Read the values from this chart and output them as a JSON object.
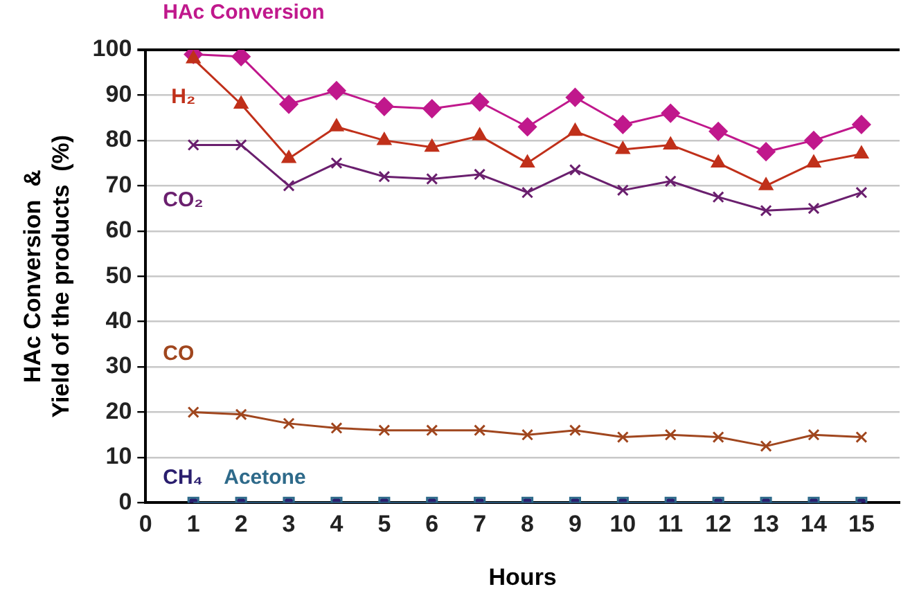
{
  "chart_data": {
    "type": "line",
    "xlabel": "Hours",
    "ylabel": "HAc Conversion  &\nYield of the products  (%)",
    "x": [
      1,
      2,
      3,
      4,
      5,
      6,
      7,
      8,
      9,
      10,
      11,
      12,
      13,
      14,
      15
    ],
    "xlim": [
      0,
      15.8
    ],
    "xticks": [
      0,
      1,
      2,
      3,
      4,
      5,
      6,
      7,
      8,
      9,
      10,
      11,
      12,
      13,
      14,
      15
    ],
    "ylim": [
      0,
      100
    ],
    "yticks": [
      0,
      10,
      20,
      30,
      40,
      50,
      60,
      70,
      80,
      90,
      100
    ],
    "grid": "y",
    "legend": false,
    "series": [
      {
        "name": "HAc Conversion",
        "color": "#c0188c",
        "marker": "diamond",
        "values": [
          99,
          98.5,
          88,
          91,
          87.5,
          87,
          88.5,
          83,
          89.5,
          83.5,
          86,
          82,
          77.5,
          80,
          83.5
        ]
      },
      {
        "name": "H₂",
        "color": "#c0301a",
        "marker": "triangle",
        "values": [
          98,
          88,
          76,
          83,
          80,
          78.5,
          81,
          75,
          82,
          78,
          79,
          75,
          70,
          75,
          77
        ]
      },
      {
        "name": "CO₂",
        "color": "#6a1f6e",
        "marker": "cross",
        "values": [
          79,
          79,
          70,
          75,
          72,
          71.5,
          72.5,
          68.5,
          73.5,
          69,
          71,
          67.5,
          64.5,
          65,
          68.5
        ]
      },
      {
        "name": "CO",
        "color": "#a0461e",
        "marker": "cross",
        "values": [
          20,
          19.5,
          17.5,
          16.5,
          16,
          16,
          16,
          15,
          16,
          14.5,
          15,
          14.5,
          12.5,
          15,
          14.5
        ]
      },
      {
        "name": "CH₄",
        "color": "#2a1e6e",
        "marker": "circle",
        "values": [
          0,
          0,
          0,
          0,
          0,
          0,
          0,
          0,
          0,
          0,
          0,
          0,
          0,
          0,
          0
        ]
      },
      {
        "name": "Acetone",
        "color": "#2e6a8a",
        "marker": "square",
        "values": [
          0,
          0,
          0,
          0,
          0,
          0,
          0,
          0,
          0,
          0,
          0,
          0,
          0,
          0,
          0
        ]
      }
    ]
  }
}
